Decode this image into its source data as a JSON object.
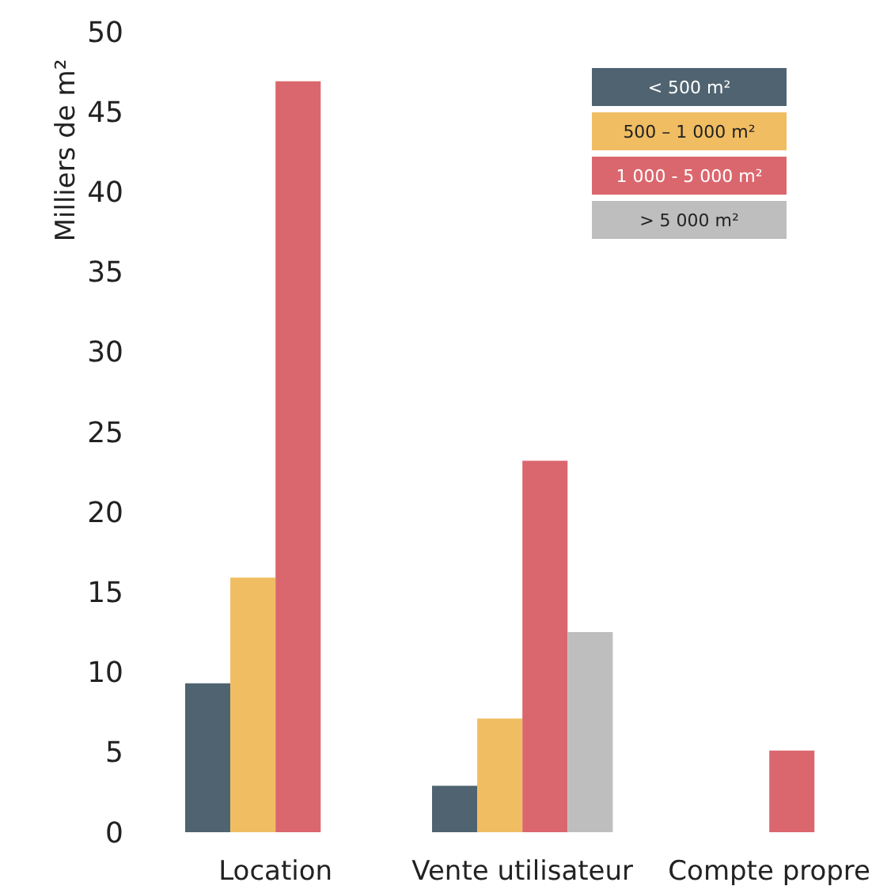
{
  "chart_data": {
    "type": "bar",
    "ylabel": "Milliers de m²",
    "categories": [
      "Location",
      "Vente utilisateur",
      "Compte propre"
    ],
    "series": [
      {
        "name": "< 500 m²",
        "color": "#4f6470",
        "values": [
          9.3,
          2.9,
          null
        ]
      },
      {
        "name": "500 – 1 000 m²",
        "color": "#f0bd62",
        "values": [
          15.9,
          7.1,
          null
        ]
      },
      {
        "name": "1 000 - 5 000 m²",
        "color": "#db676e",
        "values": [
          46.9,
          23.2,
          5.1
        ]
      },
      {
        "name": "> 5 000 m²",
        "color": "#bebebe",
        "values": [
          null,
          12.5,
          null
        ]
      }
    ],
    "ylim": [
      0,
      50
    ],
    "yticks": [
      0,
      5,
      10,
      15,
      20,
      25,
      30,
      35,
      40,
      45,
      50
    ],
    "grid": false,
    "legend": "top right"
  }
}
